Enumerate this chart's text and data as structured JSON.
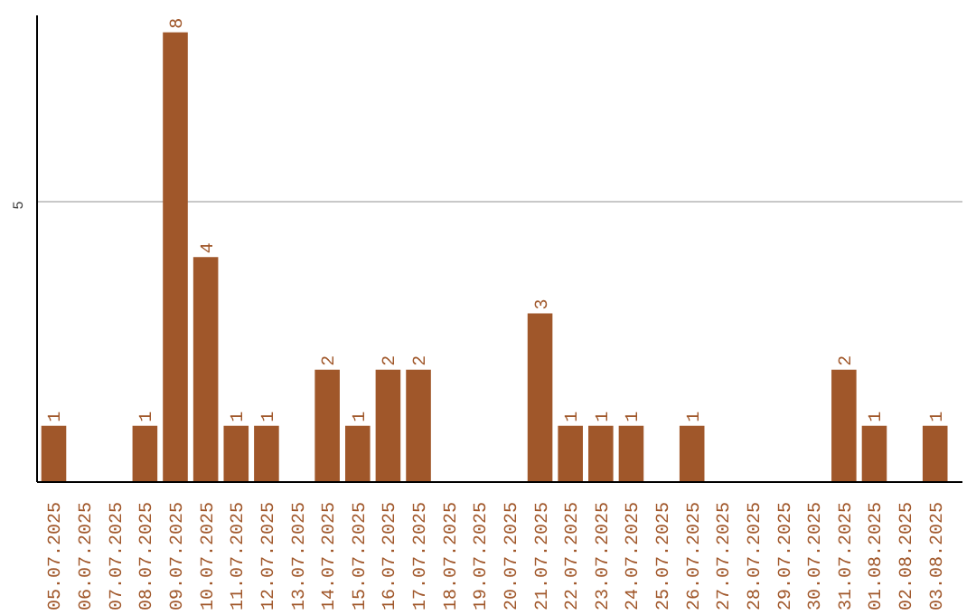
{
  "chart_data": {
    "type": "bar",
    "categories": [
      "05.07.2025",
      "06.07.2025",
      "07.07.2025",
      "08.07.2025",
      "09.07.2025",
      "10.07.2025",
      "11.07.2025",
      "12.07.2025",
      "13.07.2025",
      "14.07.2025",
      "15.07.2025",
      "16.07.2025",
      "17.07.2025",
      "18.07.2025",
      "19.07.2025",
      "20.07.2025",
      "21.07.2025",
      "22.07.2025",
      "23.07.2025",
      "24.07.2025",
      "25.07.2025",
      "26.07.2025",
      "27.07.2025",
      "28.07.2025",
      "29.07.2025",
      "30.07.2025",
      "31.07.2025",
      "01.08.2025",
      "02.08.2025",
      "03.08.2025"
    ],
    "values": [
      1,
      0,
      0,
      1,
      8,
      4,
      1,
      1,
      0,
      2,
      1,
      2,
      2,
      0,
      0,
      0,
      3,
      1,
      1,
      1,
      0,
      1,
      0,
      0,
      0,
      0,
      2,
      1,
      0,
      1
    ],
    "value_labels": [
      "1",
      null,
      null,
      "1",
      "8",
      "4",
      "1",
      "1",
      null,
      "2",
      "1",
      "2",
      "2",
      null,
      null,
      null,
      "3",
      "1",
      "1",
      "1",
      null,
      "1",
      null,
      null,
      null,
      null,
      "2",
      "1",
      null,
      "1"
    ],
    "color": "#a0572a",
    "ylim": [
      0,
      8.3
    ],
    "yticks": [
      5
    ],
    "grid": "y"
  }
}
